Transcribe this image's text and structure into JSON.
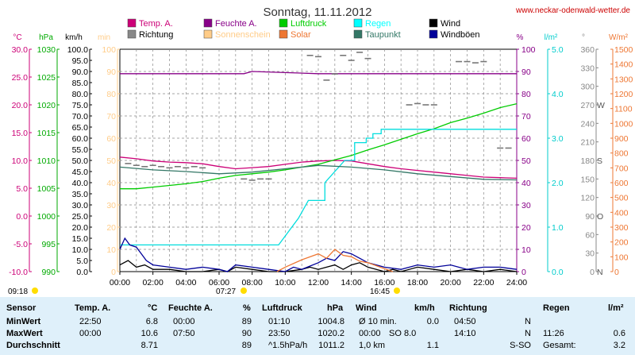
{
  "chart_data": {
    "type": "line",
    "title": "Sonntag, 11.11.2012",
    "watermark": "www.neckar-odenwald-wetter.de",
    "x_ticks": [
      "00:00",
      "02:00",
      "04:00",
      "06:00",
      "08:00",
      "10:00",
      "12:00",
      "14:00",
      "16:00",
      "18:00",
      "20:00",
      "22:00",
      "24:00"
    ],
    "xlim": [
      0,
      24
    ],
    "sunrise": "07:27",
    "sunset": "16:45",
    "moon_set": "09:18",
    "grid": true,
    "axes": [
      {
        "key": "temp",
        "unit": "°C",
        "ylim": [
          -10,
          30
        ],
        "ticks": [
          "-10.0",
          "-5.0",
          "0.0",
          "5.0",
          "10.0",
          "15.0",
          "20.0",
          "25.0",
          "30.0"
        ],
        "color": "#cc0077"
      },
      {
        "key": "press",
        "unit": "hPa",
        "ylim": [
          990,
          1030
        ],
        "ticks": [
          "990",
          "995",
          "1000",
          "1005",
          "1010",
          "1015",
          "1020",
          "1025",
          "1030"
        ],
        "color": "#00aa00"
      },
      {
        "key": "wind",
        "unit": "km/h",
        "ylim": [
          0,
          100
        ],
        "ticks": [
          "0.0",
          "5.0",
          "10.0",
          "15.0",
          "20.0",
          "25.0",
          "30.0",
          "35.0",
          "40.0",
          "45.0",
          "50.0",
          "55.0",
          "60.0",
          "65.0",
          "70.0",
          "75.0",
          "80.0",
          "85.0",
          "90.0",
          "95.0",
          "100.0"
        ],
        "color": "#000000"
      },
      {
        "key": "sun",
        "unit": "min",
        "ylim": [
          0,
          100
        ],
        "ticks": [
          "0",
          "10",
          "20",
          "30",
          "40",
          "50",
          "60",
          "70",
          "80",
          "90",
          "100"
        ],
        "color": "#ffcc88"
      },
      {
        "key": "hum",
        "unit": "%",
        "ylim": [
          0,
          100
        ],
        "ticks": [
          "0",
          "10",
          "20",
          "30",
          "40",
          "50",
          "60",
          "70",
          "80",
          "90",
          "100"
        ],
        "color": "#880088"
      },
      {
        "key": "rain",
        "unit": "l/m²",
        "ylim": [
          0,
          5
        ],
        "ticks": [
          "0.0",
          "1.0",
          "2.0",
          "3.0",
          "4.0",
          "5.0"
        ],
        "color": "#00cccc"
      },
      {
        "key": "dir",
        "unit": "°",
        "ylim": [
          0,
          360
        ],
        "ticks": [
          "0",
          "30",
          "60",
          "90",
          "120",
          "150",
          "180",
          "210",
          "240",
          "270",
          "300",
          "330",
          "360"
        ],
        "compass": [
          "N",
          "",
          "",
          "O",
          "",
          "",
          "S",
          "",
          "",
          "W",
          "",
          "",
          ""
        ],
        "color": "#888888"
      },
      {
        "key": "solar",
        "unit": "W/m²",
        "ylim": [
          0,
          1500
        ],
        "ticks": [
          "0",
          "100",
          "200",
          "300",
          "400",
          "500",
          "600",
          "700",
          "800",
          "900",
          "1000",
          "1100",
          "1200",
          "1300",
          "1400",
          "1500"
        ],
        "color": "#ee7733"
      }
    ],
    "legend": [
      {
        "name": "Temp. A.",
        "color": "#cc0077"
      },
      {
        "name": "Feuchte A.",
        "color": "#880088"
      },
      {
        "name": "Luftdruck",
        "color": "#00cc00"
      },
      {
        "name": "Regen",
        "color": "#00ffff"
      },
      {
        "name": "Wind",
        "color": "#000000"
      },
      {
        "name": "Richtung",
        "color": "#888888"
      },
      {
        "name": "Sonnenschein",
        "color": "#ffcc88"
      },
      {
        "name": "Solar",
        "color": "#ee7733"
      },
      {
        "name": "Taupunkt",
        "color": "#337766"
      },
      {
        "name": "Windböen",
        "color": "#000099"
      }
    ],
    "series": [
      {
        "name": "Temp. A.",
        "axis": "temp",
        "color": "#cc0077",
        "x": [
          0,
          1,
          2,
          3,
          4,
          5,
          6,
          7,
          8,
          9,
          10,
          11,
          12,
          13,
          14,
          15,
          16,
          17,
          18,
          19,
          20,
          21,
          22,
          23,
          24
        ],
        "y": [
          10.6,
          10.3,
          9.9,
          9.7,
          9.6,
          9.4,
          8.9,
          8.5,
          8.7,
          8.9,
          9.3,
          9.7,
          9.9,
          10.0,
          9.9,
          9.4,
          8.9,
          8.5,
          8.2,
          7.9,
          7.6,
          7.3,
          7.0,
          6.9,
          6.8
        ]
      },
      {
        "name": "Feuchte A.",
        "axis": "hum",
        "color": "#880088",
        "x": [
          0,
          4,
          7.5,
          8,
          12,
          16,
          20,
          24
        ],
        "y": [
          89,
          89,
          89,
          90,
          89,
          89,
          89,
          89
        ]
      },
      {
        "name": "Luftdruck",
        "axis": "press",
        "color": "#00cc00",
        "x": [
          0,
          1,
          2,
          3,
          4,
          5,
          6,
          7,
          8,
          9,
          10,
          11,
          12,
          13,
          14,
          15,
          16,
          17,
          18,
          19,
          20,
          21,
          22,
          23,
          24
        ],
        "y": [
          1004.9,
          1004.9,
          1005.2,
          1005.5,
          1005.8,
          1006.2,
          1006.8,
          1007.3,
          1007.6,
          1007.9,
          1008.3,
          1008.8,
          1009.3,
          1010.1,
          1010.9,
          1011.9,
          1012.8,
          1013.8,
          1014.8,
          1015.7,
          1016.8,
          1017.6,
          1018.5,
          1019.5,
          1020.2
        ]
      },
      {
        "name": "Regen",
        "axis": "rain",
        "color": "#00dddd",
        "x": [
          0,
          9.6,
          10.8,
          11.4,
          11.4,
          12.4,
          12.4,
          13.6,
          14.2,
          14.2,
          14.9,
          14.9,
          15.3,
          15.3,
          15.8,
          15.8,
          24
        ],
        "y": [
          0.6,
          0.6,
          1.2,
          1.6,
          1.6,
          1.6,
          2.0,
          2.5,
          2.5,
          2.9,
          2.9,
          3.0,
          3.0,
          3.1,
          3.1,
          3.2,
          3.2
        ]
      },
      {
        "name": "Taupunkt",
        "axis": "temp",
        "color": "#337766",
        "x": [
          0,
          2,
          4,
          6,
          8,
          10,
          12,
          14,
          16,
          18,
          20,
          22,
          24
        ],
        "y": [
          8.8,
          8.3,
          8.0,
          7.6,
          7.9,
          8.5,
          9.1,
          8.8,
          8.3,
          7.6,
          7.1,
          6.6,
          6.5
        ]
      },
      {
        "name": "Wind",
        "axis": "wind",
        "color": "#000000",
        "x": [
          0,
          0.5,
          1,
          1.5,
          2,
          3,
          4,
          5,
          6,
          6.5,
          7,
          8,
          9,
          10,
          11,
          11.5,
          12,
          12.5,
          13,
          13.5,
          14,
          14.5,
          15,
          16,
          16.5,
          17,
          18,
          19,
          20,
          21,
          22,
          23,
          24
        ],
        "y": [
          3,
          5,
          2,
          3,
          1,
          1,
          0,
          0,
          1,
          0,
          2,
          1,
          0,
          0,
          1,
          2,
          1,
          2,
          3,
          1,
          3,
          4,
          2,
          0,
          1,
          0,
          2,
          1,
          0,
          1,
          0,
          1,
          0
        ]
      },
      {
        "name": "Windböen",
        "axis": "wind",
        "color": "#000099",
        "x": [
          0,
          0.3,
          0.6,
          1,
          1.3,
          1.6,
          2,
          3,
          4,
          5,
          6,
          6.5,
          7,
          8,
          9,
          10,
          10.5,
          11,
          12,
          12.5,
          13,
          13.5,
          14,
          14.5,
          15,
          16,
          17,
          18,
          19,
          20,
          21,
          22,
          23,
          24
        ],
        "y": [
          10,
          15,
          12,
          11,
          8,
          5,
          3,
          2,
          1,
          2,
          1,
          0,
          3,
          2,
          1,
          0,
          2,
          1,
          4,
          6,
          5,
          9,
          8,
          6,
          4,
          2,
          1,
          3,
          2,
          3,
          1,
          2,
          2,
          1
        ]
      },
      {
        "name": "Solar",
        "axis": "solar",
        "color": "#ee7733",
        "x": [
          9.5,
          10,
          11,
          12,
          12.5,
          13,
          13.5,
          14,
          14.5,
          15,
          15.5,
          16,
          16.5
        ],
        "y": [
          0,
          30,
          80,
          120,
          90,
          150,
          110,
          100,
          70,
          60,
          40,
          20,
          0
        ]
      },
      {
        "name": "Richtung",
        "axis": "dir",
        "color": "#777777",
        "dotted": true,
        "x": [
          0.5,
          1,
          1.5,
          2,
          2.5,
          3,
          3.5,
          4,
          4.5,
          5,
          7.5,
          8,
          8.5,
          9,
          11.5,
          12,
          12.5,
          13,
          13.5,
          14,
          14.5,
          15,
          17.5,
          18,
          18.5,
          19,
          20.5,
          21,
          21.5,
          22,
          23,
          23.5
        ],
        "y": [
          175,
          172,
          170,
          172,
          170,
          168,
          170,
          168,
          170,
          168,
          150,
          148,
          150,
          150,
          350,
          348,
          310,
          320,
          350,
          342,
          355,
          345,
          270,
          272,
          270,
          270,
          340,
          340,
          338,
          340,
          200,
          200
        ]
      }
    ]
  },
  "stats": {
    "header": {
      "sensor": "Sensor",
      "temp": "Temp. A.",
      "temp_unit": "°C",
      "hum": "Feuchte A.",
      "hum_unit": "%",
      "press": "Luftdruck",
      "press_unit": "hPa",
      "wind": "Wind",
      "wind_unit": "km/h",
      "dir": "Richtung",
      "rain": "Regen",
      "rain_unit": "l/m²"
    },
    "rows": [
      {
        "label": "MinWert",
        "temp_time": "22:50",
        "temp_val": "6.8",
        "hum_time": "00:00",
        "hum_val": "89",
        "press_time": "01:10",
        "press_val": "1004.8",
        "wind_time": "Ø 10 min.",
        "wind_val": "0.0",
        "dir_time": "04:50",
        "dir_val": "N",
        "rain_time": "",
        "rain_val": ""
      },
      {
        "label": "MaxWert",
        "temp_time": "00:00",
        "temp_val": "10.6",
        "hum_time": "07:50",
        "hum_val": "90",
        "press_time": "23:50",
        "press_val": "1020.2",
        "wind_time": "00:00",
        "wind_mid": "SO 8.0",
        "wind_val": "",
        "dir_time": "14:10",
        "dir_val": "N",
        "rain_time": "11:26",
        "rain_val": "0.6"
      },
      {
        "label": "Durchschnitt",
        "temp_time": "",
        "temp_val": "8.71",
        "hum_time": "",
        "hum_val": "89",
        "press_time": "^1.5hPa/h",
        "press_val": "1011.2",
        "wind_time": "1,0 km",
        "wind_val": "1.1",
        "dir_time": "",
        "dir_val": "S-SO",
        "rain_time": "Gesamt:",
        "rain_val": "3.2"
      }
    ]
  }
}
